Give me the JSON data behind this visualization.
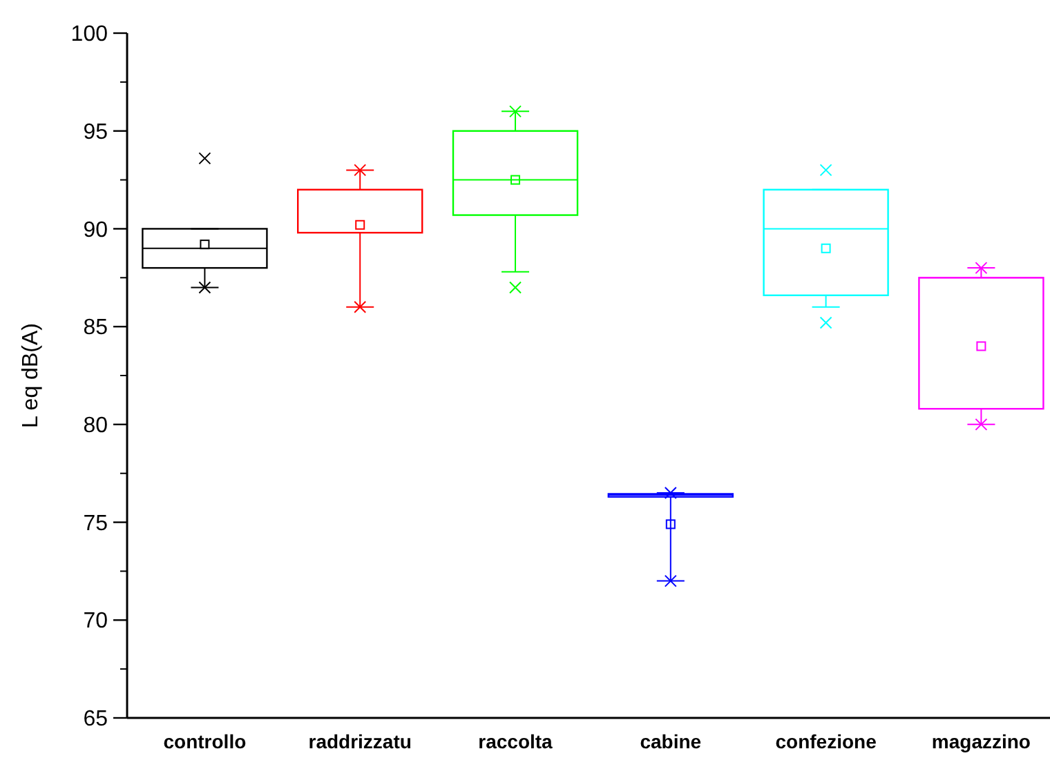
{
  "chart_data": {
    "type": "box",
    "ylabel": "L eq dB(A)",
    "categories": [
      "controllo",
      "raddrizzatu",
      "raccolta",
      "cabine",
      "confezione",
      "magazzino"
    ],
    "colors": [
      "#000000",
      "#ff0000",
      "#00ff00",
      "#0000ff",
      "#00ffff",
      "#ff00ff"
    ],
    "boxes": [
      {
        "low": 87,
        "q1": 88,
        "median": 89,
        "q3": 90,
        "high": 90,
        "mean": 89.2,
        "outliers": [
          93.6,
          87
        ]
      },
      {
        "low": 86,
        "q1": 89.8,
        "median": 89.8,
        "q3": 92,
        "high": 93,
        "mean": 90.2,
        "outliers": [
          93,
          86
        ]
      },
      {
        "low": 87.8,
        "q1": 90.7,
        "median": 92.5,
        "q3": 95,
        "high": 96,
        "mean": 92.5,
        "outliers": [
          96,
          87
        ]
      },
      {
        "low": 72,
        "q1": 76.3,
        "median": 76.4,
        "q3": 76.45,
        "high": 76.5,
        "mean": 74.9,
        "outliers": [
          76.5,
          72
        ]
      },
      {
        "low": 86,
        "q1": 86.6,
        "median": 90,
        "q3": 92,
        "high": 92,
        "mean": 89,
        "outliers": [
          93,
          85.2
        ]
      },
      {
        "low": 80,
        "q1": 80.8,
        "median": 87.5,
        "q3": 87.5,
        "high": 88,
        "mean": 84,
        "outliers": [
          88,
          80
        ]
      }
    ],
    "ylim": [
      65,
      100
    ],
    "yticks": [
      65,
      70,
      75,
      80,
      85,
      90,
      95,
      100
    ],
    "grid": false
  }
}
